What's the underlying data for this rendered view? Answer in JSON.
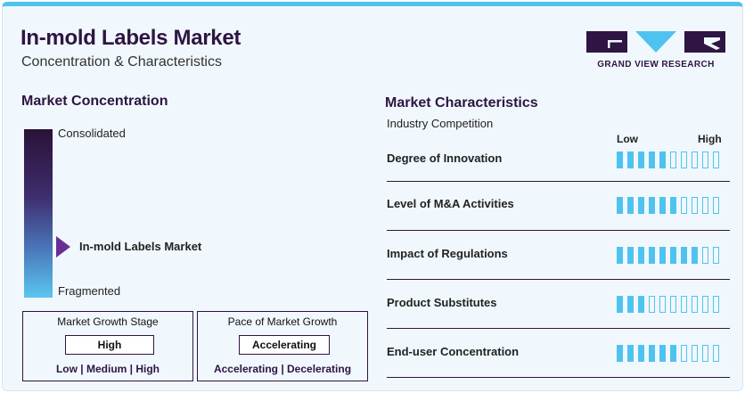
{
  "header": {
    "title": "In-mold Labels Market",
    "subtitle": "Concentration & Characteristics"
  },
  "logo": {
    "text": "GRAND VIEW RESEARCH"
  },
  "concentration": {
    "heading": "Market Concentration",
    "top_label": "Consolidated",
    "bottom_label": "Fragmented",
    "marker_label": "In-mold Labels Market"
  },
  "growth_stage": {
    "title": "Market Growth Stage",
    "value": "High",
    "options": "Low | Medium | High"
  },
  "growth_pace": {
    "title": "Pace of Market Growth",
    "value": "Accelerating",
    "options": "Accelerating | Decelerating"
  },
  "characteristics": {
    "heading": "Market Characteristics",
    "subheading": "Industry Competition",
    "low_label": "Low",
    "high_label": "High",
    "scale_max": 10,
    "rows": [
      {
        "label": "Degree of Innovation",
        "level": 5
      },
      {
        "label": "Level of M&A Activities",
        "level": 6
      },
      {
        "label": "Impact of Regulations",
        "level": 8
      },
      {
        "label": "Product Substitutes",
        "level": 3
      },
      {
        "label": "End-user Concentration",
        "level": 6
      }
    ]
  },
  "colors": {
    "accent": "#4fc3ef",
    "brand": "#2e1543",
    "marker": "#6a2f96"
  }
}
